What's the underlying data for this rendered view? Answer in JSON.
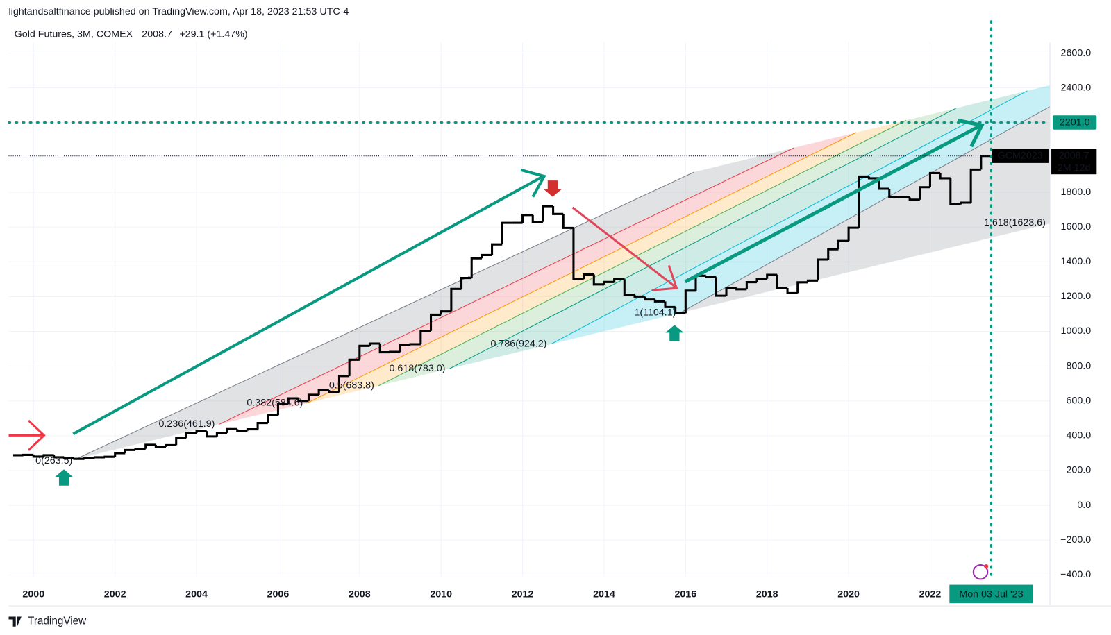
{
  "header": {
    "publisher": "lightandsaltfinance published on TradingView.com, Apr 18, 2023 21:53 UTC-4",
    "symbol": "Gold Futures, 3M, COMEX",
    "last": "2008.7",
    "change": "+29.1 (+1.47%)"
  },
  "footer": {
    "brand": "TradingView"
  },
  "chart_data": {
    "type": "line",
    "step": true,
    "color": "#000000",
    "x": [
      1999.5,
      1999.75,
      2000,
      2000.25,
      2000.5,
      2000.75,
      2001,
      2001.25,
      2001.5,
      2001.75,
      2002,
      2002.25,
      2002.5,
      2002.75,
      2003,
      2003.25,
      2003.5,
      2003.75,
      2004,
      2004.25,
      2004.5,
      2004.75,
      2005,
      2005.25,
      2005.5,
      2005.75,
      2006,
      2006.25,
      2006.5,
      2006.75,
      2007,
      2007.25,
      2007.5,
      2007.75,
      2008,
      2008.25,
      2008.5,
      2008.75,
      2009,
      2009.25,
      2009.5,
      2009.75,
      2010,
      2010.25,
      2010.5,
      2010.75,
      2011,
      2011.25,
      2011.5,
      2011.75,
      2012,
      2012.25,
      2012.5,
      2012.75,
      2013,
      2013.25,
      2013.5,
      2013.75,
      2014,
      2014.25,
      2014.5,
      2014.75,
      2015,
      2015.25,
      2015.5,
      2015.75,
      2016,
      2016.25,
      2016.5,
      2016.75,
      2017,
      2017.25,
      2017.5,
      2017.75,
      2018,
      2018.25,
      2018.5,
      2018.75,
      2019,
      2019.25,
      2019.5,
      2019.75,
      2020,
      2020.25,
      2020.5,
      2020.75,
      2021,
      2021.25,
      2021.5,
      2021.75,
      2022,
      2022.25,
      2022.5,
      2022.75,
      2023,
      2023.25
    ],
    "values": [
      288,
      290,
      280,
      288,
      276,
      272,
      267,
      270,
      276,
      279,
      300,
      318,
      325,
      348,
      336,
      346,
      388,
      416,
      427,
      396,
      416,
      438,
      429,
      437,
      473,
      518,
      583,
      615,
      600,
      635,
      663,
      650,
      743,
      837,
      917,
      930,
      880,
      882,
      924,
      926,
      1003,
      1096,
      1115,
      1244,
      1307,
      1420,
      1439,
      1500,
      1624,
      1624,
      1669,
      1630,
      1720,
      1675,
      1595,
      1300,
      1327,
      1270,
      1284,
      1300,
      1210,
      1200,
      1183,
      1172,
      1140,
      1104,
      1234,
      1320,
      1312,
      1205,
      1251,
      1242,
      1283,
      1302,
      1325,
      1250,
      1220,
      1282,
      1292,
      1413,
      1472,
      1520,
      1596,
      1890,
      1880,
      1820,
      1770,
      1771,
      1757,
      1829,
      1910,
      1880,
      1730,
      1740,
      1930,
      2008.7
    ],
    "xlim": [
      1999.39,
      2024.94
    ],
    "xticks": [
      2000,
      2002,
      2004,
      2006,
      2008,
      2010,
      2012,
      2014,
      2016,
      2018,
      2020,
      2022
    ],
    "ylim": [
      -412,
      2661
    ],
    "yticks": [
      {
        "value": 2600,
        "label": "2600.0"
      },
      {
        "value": 2400,
        "label": "2400.0"
      },
      {
        "value": 2200,
        "label": "2200.0"
      },
      {
        "value": 2000,
        "label": "2000.0"
      },
      {
        "value": 1800,
        "label": "1800.0"
      },
      {
        "value": 1600,
        "label": "1600.0"
      },
      {
        "value": 1400,
        "label": "1400.0"
      },
      {
        "value": 1200,
        "label": "1200.0"
      },
      {
        "value": 1000,
        "label": "1000.0"
      },
      {
        "value": 800,
        "label": "800.0"
      },
      {
        "value": 600,
        "label": "600.0"
      },
      {
        "value": 400,
        "label": "400.0"
      },
      {
        "value": 200,
        "label": "200.0"
      },
      {
        "value": 0,
        "label": "0.0"
      },
      {
        "value": -200,
        "label": "−200.0"
      },
      {
        "value": -400,
        "label": "−400.0"
      }
    ],
    "grid": true,
    "target_level": {
      "value": 2201,
      "label": "2201.0",
      "color": "#089981"
    },
    "last_price": 2008.7,
    "symbol_label": "GCM2023",
    "countdown": "2M 12d",
    "date_marker": {
      "value": 2023.5,
      "label": "Mon 03 Jul '23",
      "color": "#089981"
    },
    "fib_levels": [
      {
        "level": 0,
        "label": "0(263.5)",
        "color": "#787b86",
        "fill": "rgba(120,123,134,0.22)"
      },
      {
        "level": 0.236,
        "label": "0.236(461.9)",
        "color": "#f23645",
        "fill": "rgba(242,54,69,0.2)"
      },
      {
        "level": 0.382,
        "label": "0.382(584.6)",
        "color": "#ff9800",
        "fill": "rgba(255,152,0,0.2)"
      },
      {
        "level": 0.5,
        "label": "0.5(683.8)",
        "color": "#4caf50",
        "fill": "rgba(76,175,80,0.2)"
      },
      {
        "level": 0.618,
        "label": "0.618(783.0)",
        "color": "#089981",
        "fill": "rgba(8,153,129,0.2)"
      },
      {
        "level": 0.786,
        "label": "0.786(924.2)",
        "color": "#00bcd4",
        "fill": "rgba(0,188,212,0.22)"
      },
      {
        "level": 1,
        "label": "1(1104.1)",
        "color": "#787b86",
        "fill": "rgba(120,123,134,0.22)"
      },
      {
        "level": 1.618,
        "label": "1.618(1623.6)",
        "color": "#2962ff"
      }
    ]
  }
}
